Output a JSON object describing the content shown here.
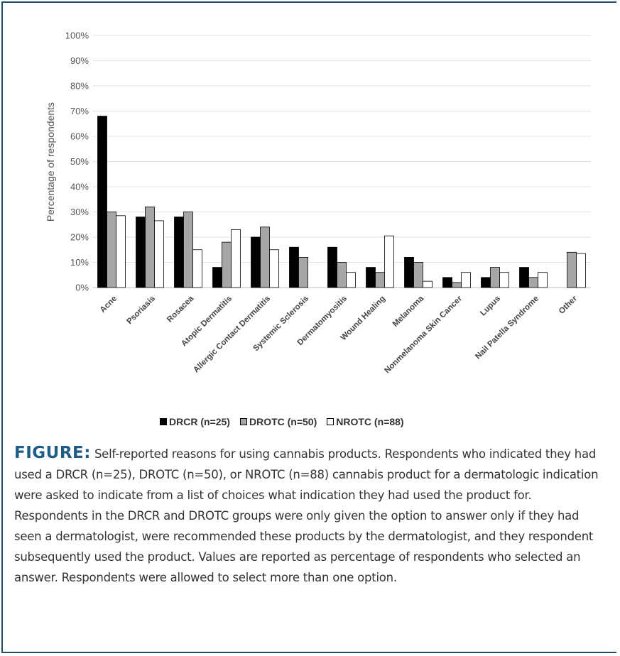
{
  "chart_data": {
    "type": "bar",
    "ylabel": "Percentage of respondents",
    "ylim": [
      0,
      100
    ],
    "yticks": [
      "0%",
      "10%",
      "20%",
      "30%",
      "40%",
      "50%",
      "60%",
      "70%",
      "80%",
      "90%",
      "100%"
    ],
    "grid": true,
    "legend_position": "bottom",
    "categories": [
      "Acne",
      "Psoriasis",
      "Rosacea",
      "Atopic Dermatitis",
      "Allergic Contact Dermatitis",
      "Systemic Sclerosis",
      "Dermatomyositis",
      "Wound Healing",
      "Melanoma",
      "Nonmelanoma Skin Cancer",
      "Lupus",
      "Nail Patella Syndrome",
      "Other"
    ],
    "series": [
      {
        "name": "DRCR (n=25)",
        "color": "#000000",
        "values": [
          68,
          28,
          28,
          8,
          20,
          16,
          16,
          8,
          12,
          4,
          4,
          8,
          0
        ]
      },
      {
        "name": "DROTC (n=50)",
        "color": "#a6a6a6",
        "values": [
          30,
          32,
          30,
          18,
          24,
          12,
          10,
          6,
          10,
          2,
          8,
          4,
          14
        ]
      },
      {
        "name": "NROTC (n=88)",
        "color": "#ffffff",
        "values": [
          28.5,
          26.5,
          15,
          23,
          15,
          0,
          6,
          20.5,
          2.5,
          6,
          6,
          6,
          13.5
        ]
      }
    ]
  },
  "caption": {
    "label": "FIGURE:",
    "text": "Self-reported reasons for using cannabis products. Respondents who indicated they had used a DRCR (n=25), DROTC (n=50), or NROTC (n=88) cannabis product for a dermatologic indication were asked to indicate from a list of choices what indication they had used the product for. Respondents in the DRCR and DROTC groups were only given the option to answer only if they had seen a dermatologist, were recommended these products by the dermatologist, and they respondent subsequently used the product. Values are reported as percentage of respondents who selected an answer. Respondents were allowed to select more than one option."
  }
}
